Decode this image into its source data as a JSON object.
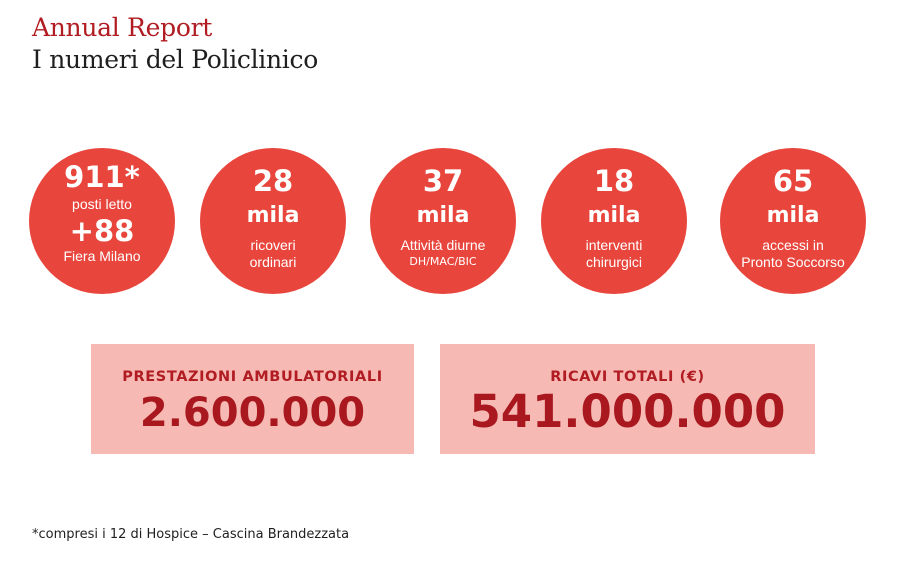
{
  "header": {
    "title": "Annual Report",
    "subtitle": "I numeri del Policlinico"
  },
  "circles": [
    {
      "value": "911*",
      "label": "posti letto",
      "extra_value": "+88",
      "extra_label": "Fiera Milano"
    },
    {
      "value": "28",
      "unit": "mila",
      "label_line1": "ricoveri",
      "label_line2": "ordinari"
    },
    {
      "value": "37",
      "unit": "mila",
      "label_line1": "Attività diurne",
      "label_line2": "DH/MAC/BIC"
    },
    {
      "value": "18",
      "unit": "mila",
      "label_line1": "interventi",
      "label_line2": "chirurgici"
    },
    {
      "value": "65",
      "unit": "mila",
      "label_line1": "accessi in",
      "label_line2": "Pronto Soccorso"
    }
  ],
  "boxes": [
    {
      "label": "PRESTAZIONI AMBULATORIALI",
      "value": "2.600.000"
    },
    {
      "label": "RICAVI TOTALI (€)",
      "value": "541.000.000"
    }
  ],
  "footnote": "*compresi i 12 di Hospice – Cascina Brandezzata",
  "colors": {
    "circle_fill": "#e8463d",
    "box_fill": "#f6b9b3",
    "accent_red": "#b01c22",
    "text_dark": "#1f1f1f"
  }
}
